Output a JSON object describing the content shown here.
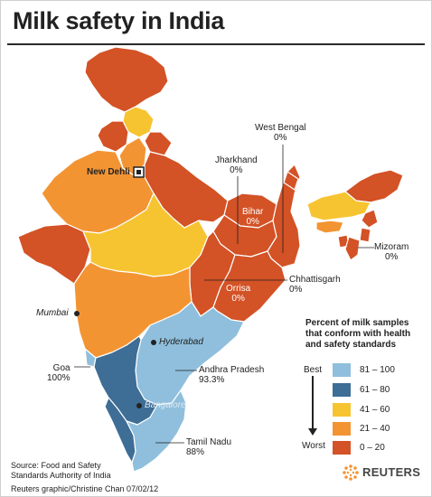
{
  "title": "Milk safety in India",
  "colors": {
    "c81_100": "#8fbfdc",
    "c61_80": "#3e6d96",
    "c41_60": "#f7c431",
    "c21_40": "#f39433",
    "c0_20": "#d35226",
    "border": "#ffffff"
  },
  "labels": {
    "west_bengal": {
      "name": "West Bengal",
      "value": "0%"
    },
    "jharkhand": {
      "name": "Jharkhand",
      "value": "0%"
    },
    "bihar": {
      "name": "Bihar",
      "value": "0%"
    },
    "mizoram": {
      "name": "Mizoram",
      "value": "0%"
    },
    "chhattisgarh": {
      "name": "Chhattisgarh",
      "value": "0%"
    },
    "orrisa": {
      "name": "Orrisa",
      "value": "0%"
    },
    "andhra_pradesh": {
      "name": "Andhra Pradesh",
      "value": "93.3%"
    },
    "goa": {
      "name": "Goa",
      "value": "100%"
    },
    "tamil_nadu": {
      "name": "Tamil Nadu",
      "value": "88%"
    }
  },
  "cities": {
    "new_delhi": "New Dehli",
    "mumbai": "Mumbai",
    "hyderabad": "Hyderabad",
    "bangalore": "Bangalore"
  },
  "legend": {
    "title": "Percent of milk samples that conform with health and safety standards",
    "best": "Best",
    "worst": "Worst",
    "items": [
      {
        "label": "81 – 100",
        "color": "#8fbfdc"
      },
      {
        "label": "61 – 80",
        "color": "#3e6d96"
      },
      {
        "label": "41 – 60",
        "color": "#f7c431"
      },
      {
        "label": "21 – 40",
        "color": "#f39433"
      },
      {
        "label": "0 – 20",
        "color": "#d35226"
      }
    ]
  },
  "source": {
    "line1": "Source: Food and Safety",
    "line2": "Standards Authority of India"
  },
  "credit": "Reuters graphic/Christine Chan  07/02/12",
  "brand": "REUTERS"
}
